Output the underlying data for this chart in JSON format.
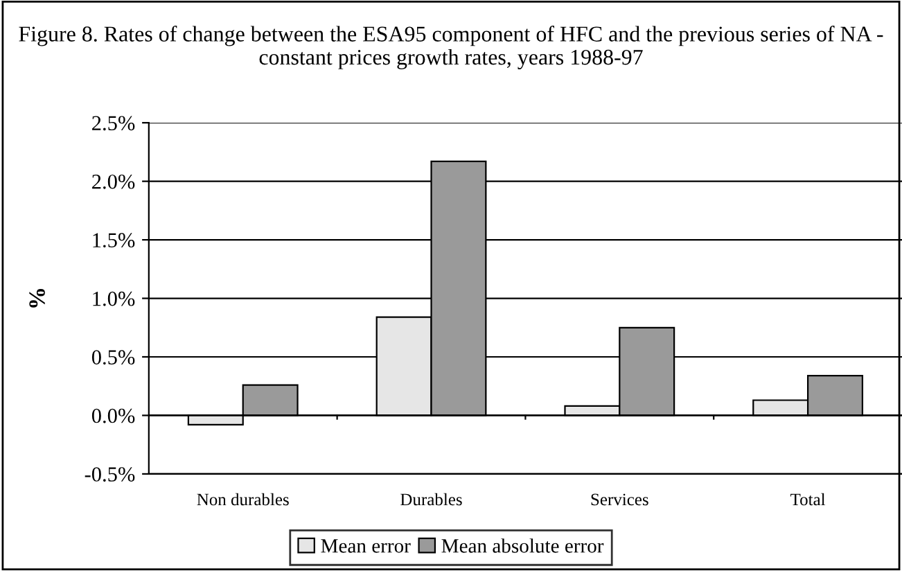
{
  "chart_data": {
    "type": "bar",
    "title": "Figure 8. Rates of change between the ESA95 component of HFC and the previous series of NA - constant prices growth rates, years 1988-97",
    "ylabel": "%",
    "categories": [
      "Non durables",
      "Durables",
      "Services",
      "Total"
    ],
    "series": [
      {
        "name": "Mean error",
        "color": "#e6e6e6",
        "values": [
          -0.08,
          0.84,
          0.08,
          0.13
        ]
      },
      {
        "name": "Mean absolute error",
        "color": "#9a9a9a",
        "values": [
          0.26,
          2.17,
          0.75,
          0.34
        ]
      }
    ],
    "ylim": [
      -0.5,
      2.5
    ],
    "yticks": [
      {
        "value": -0.5,
        "label": "-0.5%"
      },
      {
        "value": 0,
        "label": "0.0%"
      },
      {
        "value": 0.5,
        "label": "0.5%"
      },
      {
        "value": 1.0,
        "label": "1.0%"
      },
      {
        "value": 1.5,
        "label": "1.5%"
      },
      {
        "value": 2.0,
        "label": "2.0%"
      },
      {
        "value": 2.5,
        "label": "2.5%"
      }
    ],
    "grid": "y",
    "legend": "bottom"
  }
}
